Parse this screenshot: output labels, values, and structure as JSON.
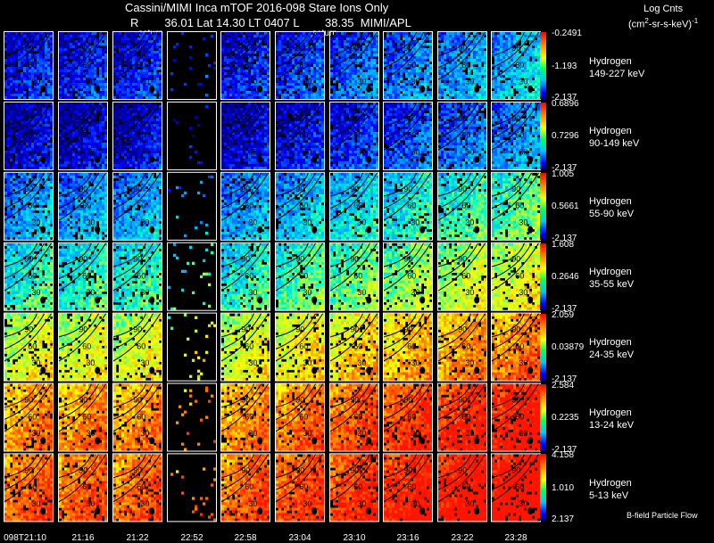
{
  "header": {
    "title": "Cassini/MIMI Inca mTOF  2016-098    Stare    Ions Only",
    "line2": "R        36.01 Lat 14.30 LT 0407 L        38.35  MIMI/APL",
    "log_label_line1": "Log Cnts",
    "log_label_line2_a": "(cm",
    "log_label_line2_sup": "2",
    "log_label_line2_b": "-sr-s-keV)",
    "log_label_line2_sup2": "-1"
  },
  "saturn_labels": [
    "saturn",
    "saturn"
  ],
  "flow_label": "B-field Particle Flow",
  "chart_data": {
    "type": "heatmap",
    "title": "Cassini/MIMI Inca mTOF 2016-098 Stare Ions Only",
    "x_time_labels": [
      "098T21:10",
      "21:16",
      "21:22",
      "22:52",
      "22:58",
      "23:04",
      "23:10",
      "23:16",
      "23:22",
      "23:28"
    ],
    "contour_labels": [
      "90",
      "60",
      "30"
    ],
    "rows": [
      {
        "species": "Hydrogen",
        "energy": "149-227 keV",
        "colorbar": [
          "-0.2491",
          "-1.193",
          "-2.137"
        ],
        "intensity": 0.12
      },
      {
        "species": "Hydrogen",
        "energy": "90-149 keV",
        "colorbar": [
          "0.6896",
          "0.7296",
          "-2.137"
        ],
        "intensity": 0.06
      },
      {
        "species": "Hydrogen",
        "energy": "55-90 keV",
        "colorbar": [
          "1.005",
          "0.5661",
          "-2.137"
        ],
        "intensity": 0.28
      },
      {
        "species": "Hydrogen",
        "energy": "35-55 keV",
        "colorbar": [
          "1.608",
          "0.2646",
          "-2.137"
        ],
        "intensity": 0.42
      },
      {
        "species": "Hydrogen",
        "energy": "24-35 keV",
        "colorbar": [
          "2.059",
          "0.03879",
          "-2.137"
        ],
        "intensity": 0.62
      },
      {
        "species": "Hydrogen",
        "energy": "13-24 keV",
        "colorbar": [
          "2.584",
          "0.2235",
          "-2.137"
        ],
        "intensity": 0.8
      },
      {
        "species": "Hydrogen",
        "energy": "5-13 keV",
        "colorbar": [
          "4.158",
          "1.010",
          "2.137"
        ],
        "intensity": 0.86
      }
    ]
  }
}
